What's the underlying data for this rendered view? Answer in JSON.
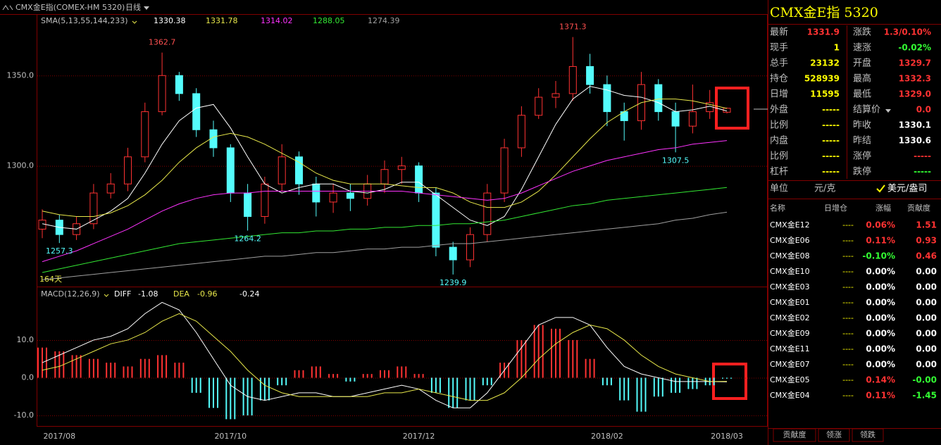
{
  "header": {
    "instrument": "CMX金E指(COMEX-HM 5320)",
    "period": "日线",
    "days": "164天"
  },
  "chart_data": [
    {
      "type": "candlestick",
      "categories": [
        null,
        "2017/08",
        null,
        null,
        null,
        null,
        null,
        null,
        null,
        null,
        null,
        "2017/10",
        null,
        null,
        null,
        null,
        null,
        null,
        null,
        null,
        null,
        null,
        "2017/12",
        null,
        null,
        null,
        null,
        null,
        null,
        null,
        null,
        null,
        null,
        "2018/02",
        null,
        null,
        null,
        null,
        null,
        null,
        "2018/03"
      ],
      "open": [
        1265,
        1270,
        1262,
        1268,
        1285,
        1290,
        1305,
        1330,
        1350,
        1340,
        1320,
        1310,
        1285,
        1272,
        1290,
        1305,
        1290,
        1280,
        1285,
        1282,
        1290,
        1298,
        1300,
        1285,
        1255,
        1248,
        1262,
        1285,
        1310,
        1328,
        1338,
        1340,
        1355,
        1345,
        1330,
        1325,
        1345,
        1330,
        1322,
        1330,
        1329.7
      ],
      "high": [
        1276,
        1273,
        1272,
        1290,
        1296,
        1310,
        1335,
        1362.7,
        1352,
        1343,
        1325,
        1312,
        1290,
        1294,
        1312,
        1308,
        1294,
        1290,
        1290,
        1295,
        1303,
        1305,
        1302,
        1288,
        1258,
        1266,
        1290,
        1315,
        1333,
        1343,
        1347,
        1371.3,
        1362,
        1350,
        1335,
        1352,
        1348,
        1335,
        1345,
        1342,
        1332.3
      ],
      "low": [
        1260,
        1257.3,
        1259,
        1265,
        1282,
        1286,
        1302,
        1328,
        1336,
        1316,
        1305,
        1280,
        1264.2,
        1268,
        1286,
        1284,
        1272,
        1274,
        1275,
        1278,
        1285,
        1290,
        1280,
        1250,
        1239.9,
        1244,
        1258,
        1280,
        1305,
        1326,
        1332,
        1336,
        1340,
        1322,
        1314,
        1320,
        1325,
        1307.5,
        1318,
        1326,
        1329.0
      ],
      "close": [
        1270,
        1262,
        1268,
        1285,
        1290,
        1305,
        1330,
        1350,
        1340,
        1320,
        1310,
        1285,
        1272,
        1290,
        1305,
        1290,
        1280,
        1285,
        1282,
        1290,
        1298,
        1300,
        1285,
        1255,
        1248,
        1262,
        1285,
        1310,
        1328,
        1338,
        1340,
        1355,
        1345,
        1330,
        1325,
        1345,
        1330,
        1322,
        1330,
        1335,
        1331.9
      ],
      "up_color": "#ff3232",
      "down_color": "#54fcfc",
      "legend_title": "SMA(5,13,55,144,233)",
      "series": [
        {
          "color": "#ffffff",
          "values": [
            1268,
            1266,
            1265,
            1270,
            1275,
            1282,
            1296,
            1312,
            1325,
            1332,
            1334,
            1321,
            1305,
            1290,
            1285,
            1288,
            1290,
            1290,
            1286,
            1285,
            1287,
            1291,
            1291,
            1284,
            1277,
            1270,
            1267,
            1272,
            1287,
            1305,
            1323,
            1337,
            1344,
            1342,
            1339,
            1338,
            1335,
            1330,
            1331,
            1333,
            1330.38
          ]
        },
        {
          "color": "#e8e84a",
          "values": [
            1275,
            1273,
            1272,
            1272,
            1274,
            1278,
            1284,
            1292,
            1302,
            1310,
            1316,
            1318,
            1316,
            1312,
            1307,
            1302,
            1296,
            1292,
            1290,
            1290,
            1290,
            1289,
            1288,
            1288,
            1285,
            1280,
            1277,
            1277,
            1280,
            1286,
            1295,
            1305,
            1315,
            1324,
            1330,
            1335,
            1337,
            1337,
            1336,
            1334,
            1331.78
          ]
        },
        {
          "color": "#ff33ff",
          "values": [
            1247,
            1250,
            1253,
            1257,
            1261,
            1265,
            1270,
            1275,
            1279,
            1282,
            1284,
            1285,
            1285,
            1286,
            1286,
            1286,
            1286,
            1286,
            1286,
            1286,
            1286,
            1286,
            1285,
            1284,
            1283,
            1282,
            1281,
            1282,
            1285,
            1289,
            1293,
            1297,
            1300,
            1303,
            1305,
            1307,
            1309,
            1310,
            1312,
            1313,
            1314.02
          ]
        },
        {
          "color": "#33e833",
          "values": [
            1241,
            1243,
            1245,
            1247,
            1249,
            1251,
            1253,
            1255,
            1257,
            1258,
            1259,
            1260,
            1261,
            1262,
            1263,
            1263,
            1264,
            1264,
            1265,
            1265,
            1266,
            1266,
            1267,
            1267,
            1268,
            1268,
            1269,
            1270,
            1272,
            1274,
            1276,
            1278,
            1279,
            1281,
            1282,
            1283,
            1284,
            1285,
            1286,
            1287,
            1288.05
          ]
        },
        {
          "color": "#a0a0a0",
          "values": [
            1237,
            1238,
            1239,
            1240,
            1241,
            1242,
            1243,
            1244,
            1245,
            1246,
            1247,
            1248,
            1249,
            1250,
            1250,
            1251,
            1252,
            1252,
            1253,
            1254,
            1254,
            1255,
            1255,
            1256,
            1257,
            1257,
            1258,
            1259,
            1260,
            1261,
            1262,
            1263,
            1264,
            1265,
            1266,
            1267,
            1268,
            1270,
            1271,
            1273,
            1274.39
          ]
        }
      ],
      "ylim": [
        1234,
        1384
      ],
      "yticks": [
        {
          "value": 1300,
          "label": "1300.0"
        },
        {
          "value": 1350,
          "label": "1350.0"
        }
      ],
      "grid": true
    },
    {
      "type": "macd",
      "legend_title": "MACD(12,26,9)",
      "histogram": {
        "up_color": "#ff3232",
        "down_color": "#54fcfc",
        "values": [
          8,
          7,
          6,
          5,
          4,
          3,
          5,
          6,
          4,
          -4,
          -8,
          -11,
          -10,
          -6,
          -2,
          2,
          3,
          1,
          -1,
          1,
          2,
          3,
          1,
          -4,
          -8,
          -6,
          -2,
          4,
          10,
          14,
          13,
          10,
          5,
          -2,
          -6,
          -9,
          -5,
          -4,
          -3,
          -2,
          -0.24
        ]
      },
      "series": [
        {
          "name": "DIFF",
          "color": "#ffffff",
          "values": [
            4,
            6,
            8,
            10,
            11,
            13,
            17,
            20,
            18,
            12,
            5,
            -2,
            -5,
            -6,
            -5,
            -4,
            -4,
            -5,
            -5,
            -4,
            -3,
            -2,
            -3,
            -6,
            -8,
            -8,
            -4,
            2,
            8,
            14,
            16,
            16,
            14,
            8,
            3,
            1,
            0,
            -1,
            -1,
            -1,
            -1.08
          ]
        },
        {
          "name": "DEA",
          "color": "#e8e84a",
          "values": [
            2,
            3,
            5,
            7,
            9,
            10,
            12,
            15,
            17,
            15,
            11,
            7,
            2,
            -2,
            -4,
            -5,
            -5,
            -5,
            -5,
            -5,
            -4,
            -4,
            -3,
            -4,
            -5,
            -6,
            -6,
            -4,
            0,
            5,
            9,
            12,
            14,
            13,
            10,
            6,
            3,
            1,
            0,
            -1,
            -0.96
          ]
        }
      ],
      "ylim": [
        -12.8,
        24
      ],
      "yticks": [
        {
          "value": -10,
          "label": "-10.0"
        },
        {
          "value": 0,
          "label": "0.0"
        },
        {
          "value": 10,
          "label": "10.0"
        }
      ],
      "grid": true
    }
  ],
  "quote_panel": {
    "title": "CMX金E指  5320",
    "left": [
      {
        "label": "最新",
        "value": "1331.9",
        "color": "#ff3232"
      },
      {
        "label": "现手",
        "value": "1",
        "color": "#ffff00"
      },
      {
        "label": "总手",
        "value": "23132",
        "color": "#ffff00"
      },
      {
        "label": "持仓",
        "value": "528939",
        "color": "#ffff00"
      },
      {
        "label": "日增",
        "value": "11595",
        "color": "#ffff00"
      },
      {
        "label": "外盘",
        "value": "-----",
        "color": "#ffff00"
      },
      {
        "label": "比例",
        "value": "-----",
        "color": "#ffff00"
      },
      {
        "label": "内盘",
        "value": "-----",
        "color": "#ffff00"
      },
      {
        "label": "比例",
        "value": "-----",
        "color": "#ffff00"
      },
      {
        "label": "杠杆",
        "value": "-----",
        "color": "#ffff00"
      }
    ],
    "right": [
      {
        "label": "涨跌",
        "value": "1.3/0.10%",
        "color": "#ff3232"
      },
      {
        "label": "速涨",
        "value": "-0.02%",
        "color": "#33ff33"
      },
      {
        "label": "开盘",
        "value": "1329.7",
        "color": "#ff3232"
      },
      {
        "label": "最高",
        "value": "1332.3",
        "color": "#ff3232"
      },
      {
        "label": "最低",
        "value": "1329.0",
        "color": "#ff3232"
      },
      {
        "label": "结算价",
        "value": "0.0",
        "color": "#ff3232"
      },
      {
        "label": "昨收",
        "value": "1330.1",
        "color": "#ffffff"
      },
      {
        "label": "昨结",
        "value": "1330.6",
        "color": "#ffffff"
      },
      {
        "label": "涨停",
        "value": "-----",
        "color": "#ff3232"
      },
      {
        "label": "跌停",
        "value": "-----",
        "color": "#33ff33"
      }
    ],
    "unit_label": "单位",
    "unit_a": "元/克",
    "unit_b": "美元/盎司"
  },
  "contrib_table": {
    "columns": [
      "名称",
      "日增仓",
      "涨幅",
      "贡献度"
    ],
    "rows": [
      {
        "name": "CMX金E12",
        "oi": "----",
        "change": "0.06%",
        "change_color": "#ff3232",
        "contrib": "1.51",
        "contrib_color": "#ff3232"
      },
      {
        "name": "CMX金E06",
        "oi": "----",
        "change": "0.11%",
        "change_color": "#ff3232",
        "contrib": "0.93",
        "contrib_color": "#ff3232"
      },
      {
        "name": "CMX金E08",
        "oi": "----",
        "change": "-0.10%",
        "change_color": "#33ff33",
        "contrib": "0.46",
        "contrib_color": "#ff3232"
      },
      {
        "name": "CMX金E10",
        "oi": "----",
        "change": "0.00%",
        "change_color": "#ffffff",
        "contrib": "0.00",
        "contrib_color": "#ffffff"
      },
      {
        "name": "CMX金E03",
        "oi": "----",
        "change": "0.00%",
        "change_color": "#ffffff",
        "contrib": "0.00",
        "contrib_color": "#ffffff"
      },
      {
        "name": "CMX金E01",
        "oi": "----",
        "change": "0.00%",
        "change_color": "#ffffff",
        "contrib": "0.00",
        "contrib_color": "#ffffff"
      },
      {
        "name": "CMX金E02",
        "oi": "----",
        "change": "0.00%",
        "change_color": "#ffffff",
        "contrib": "0.00",
        "contrib_color": "#ffffff"
      },
      {
        "name": "CMX金E09",
        "oi": "----",
        "change": "0.00%",
        "change_color": "#ffffff",
        "contrib": "0.00",
        "contrib_color": "#ffffff"
      },
      {
        "name": "CMX金E11",
        "oi": "----",
        "change": "0.00%",
        "change_color": "#ffffff",
        "contrib": "0.00",
        "contrib_color": "#ffffff"
      },
      {
        "name": "CMX金E07",
        "oi": "----",
        "change": "0.00%",
        "change_color": "#ffffff",
        "contrib": "0.00",
        "contrib_color": "#ffffff"
      },
      {
        "name": "CMX金E05",
        "oi": "----",
        "change": "0.14%",
        "change_color": "#ff3232",
        "contrib": "-0.00",
        "contrib_color": "#33ff33"
      },
      {
        "name": "CMX金E04",
        "oi": "----",
        "change": "0.11%",
        "change_color": "#ff3232",
        "contrib": "-1.45",
        "contrib_color": "#33ff33"
      }
    ]
  },
  "tabs": [
    "贡献度",
    "领涨",
    "领跌"
  ]
}
